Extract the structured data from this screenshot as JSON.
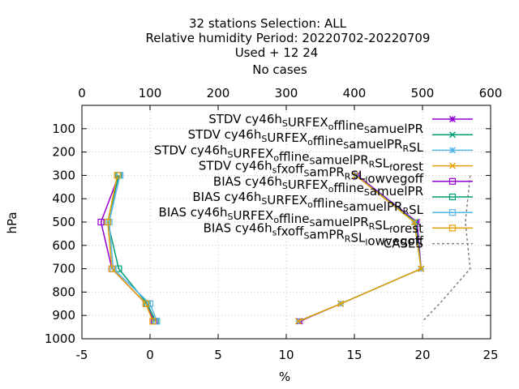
{
  "chart_data": {
    "type": "line",
    "title_lines": [
      "32 stations Selection: ALL",
      "Relative humidity  Period: 20220702-20220709",
      "Used   + 12 24",
      "No cases"
    ],
    "xlabel": "%",
    "ylabel": "hPa",
    "xlim": [
      -5,
      25
    ],
    "ylim": [
      1000,
      0
    ],
    "x2lim": [
      0,
      600
    ],
    "x_ticks": [
      "-5",
      "0",
      "5",
      "10",
      "15",
      "20",
      "25"
    ],
    "y_ticks": [
      "100",
      "200",
      "300",
      "400",
      "500",
      "600",
      "700",
      "800",
      "900",
      "1000"
    ],
    "x2_ticks": [
      "0",
      "100",
      "200",
      "300",
      "400",
      "500",
      "600"
    ],
    "grid": true,
    "legend_position": "top-right",
    "series": [
      {
        "name": "STDV cy46h_SURFEX_offline_samuelPR",
        "legend_parts": [
          [
            "STDV cy46h",
            "n"
          ],
          [
            "S",
            "sub"
          ],
          [
            "URFEX",
            "n"
          ],
          [
            "o",
            "sub"
          ],
          [
            "ffline",
            "n"
          ],
          [
            "S",
            "sub"
          ],
          [
            "amuelPR",
            "n"
          ]
        ],
        "color": "#9400d3",
        "marker": "star",
        "x": [
          15.2,
          19.6,
          19.9,
          14.0,
          11.0
        ],
        "y": [
          300,
          500,
          700,
          850,
          925
        ]
      },
      {
        "name": "STDV cy46h_SURFEX_offline_samuelPR_RSL",
        "legend_parts": [
          [
            "STDV cy46h",
            "n"
          ],
          [
            "S",
            "sub"
          ],
          [
            "URFEX",
            "n"
          ],
          [
            "o",
            "sub"
          ],
          [
            "ffline",
            "n"
          ],
          [
            "S",
            "sub"
          ],
          [
            "amuelPR",
            "n"
          ],
          [
            "R",
            "sub"
          ],
          [
            "SL",
            "n"
          ]
        ],
        "color": "#009e73",
        "marker": "x",
        "x": [
          15.1,
          19.5,
          19.9,
          14.0,
          10.9
        ],
        "y": [
          300,
          500,
          700,
          850,
          925
        ]
      },
      {
        "name": "STDV cy46h_SURFEX_offline_samuelPR_RSL_forest",
        "legend_parts": [
          [
            "STDV cy46h",
            "n"
          ],
          [
            "S",
            "sub"
          ],
          [
            "URFEX",
            "n"
          ],
          [
            "o",
            "sub"
          ],
          [
            "ffline",
            "n"
          ],
          [
            "S",
            "sub"
          ],
          [
            "amuelPR",
            "n"
          ],
          [
            "R",
            "sub"
          ],
          [
            "SL",
            "n"
          ],
          [
            "f",
            "sub"
          ],
          [
            "orest",
            "n"
          ]
        ],
        "color": "#56b4e9",
        "marker": "star",
        "x": [
          15.1,
          19.4,
          19.9,
          14.0,
          10.9
        ],
        "y": [
          300,
          500,
          700,
          850,
          925
        ]
      },
      {
        "name": "STDV cy46h_sfxoff_samPR_RSL_lowvegoff",
        "legend_parts": [
          [
            "STDV cy46h",
            "n"
          ],
          [
            "s",
            "sub"
          ],
          [
            "fxoff",
            "n"
          ],
          [
            "S",
            "sub"
          ],
          [
            "amPR",
            "n"
          ],
          [
            "R",
            "sub"
          ],
          [
            "SL",
            "n"
          ],
          [
            "l",
            "sub"
          ],
          [
            "owvegoff",
            "n"
          ]
        ],
        "color": "#e69f00",
        "marker": "x",
        "x": [
          15.1,
          19.4,
          19.9,
          14.0,
          10.9
        ],
        "y": [
          300,
          500,
          700,
          850,
          925
        ]
      },
      {
        "name": "BIAS cy46h_SURFEX_offline_samuelPR",
        "legend_parts": [
          [
            "BIAS cy46h",
            "n"
          ],
          [
            "S",
            "sub"
          ],
          [
            "URFEX",
            "n"
          ],
          [
            "o",
            "sub"
          ],
          [
            "ffline",
            "n"
          ],
          [
            "S",
            "sub"
          ],
          [
            "amuelPR",
            "n"
          ]
        ],
        "color": "#9400d3",
        "marker": "square",
        "x": [
          -2.3,
          -3.6,
          -2.8,
          -0.3,
          0.3
        ],
        "y": [
          300,
          500,
          700,
          850,
          925
        ]
      },
      {
        "name": "BIAS cy46h_SURFEX_offline_samuelPR_RSL",
        "legend_parts": [
          [
            "BIAS cy46h",
            "n"
          ],
          [
            "S",
            "sub"
          ],
          [
            "URFEX",
            "n"
          ],
          [
            "o",
            "sub"
          ],
          [
            "ffline",
            "n"
          ],
          [
            "S",
            "sub"
          ],
          [
            "amuelPR",
            "n"
          ],
          [
            "R",
            "sub"
          ],
          [
            "SL",
            "n"
          ]
        ],
        "color": "#009e73",
        "marker": "square",
        "x": [
          -2.3,
          -3.1,
          -2.3,
          -0.2,
          0.4
        ],
        "y": [
          300,
          500,
          700,
          850,
          925
        ]
      },
      {
        "name": "BIAS cy46h_SURFEX_offline_samuelPR_RSL_forest",
        "legend_parts": [
          [
            "BIAS cy46h",
            "n"
          ],
          [
            "S",
            "sub"
          ],
          [
            "URFEX",
            "n"
          ],
          [
            "o",
            "sub"
          ],
          [
            "ffline",
            "n"
          ],
          [
            "S",
            "sub"
          ],
          [
            "amuelPR",
            "n"
          ],
          [
            "R",
            "sub"
          ],
          [
            "SL",
            "n"
          ],
          [
            "f",
            "sub"
          ],
          [
            "orest",
            "n"
          ]
        ],
        "color": "#56b4e9",
        "marker": "square",
        "x": [
          -2.2,
          -3.0,
          -2.7,
          0.0,
          0.5
        ],
        "y": [
          300,
          500,
          700,
          850,
          925
        ]
      },
      {
        "name": "BIAS cy46h_sfxoff_samPR_RSL_lowvegoff",
        "legend_parts": [
          [
            "BIAS cy46h",
            "n"
          ],
          [
            "s",
            "sub"
          ],
          [
            "fxoff",
            "n"
          ],
          [
            "S",
            "sub"
          ],
          [
            "amPR",
            "n"
          ],
          [
            "R",
            "sub"
          ],
          [
            "SL",
            "n"
          ],
          [
            "l",
            "sub"
          ],
          [
            "owvegoff",
            "n"
          ]
        ],
        "color": "#e69f00",
        "marker": "square",
        "x": [
          -2.4,
          -3.1,
          -2.8,
          -0.3,
          0.2
        ],
        "y": [
          300,
          500,
          700,
          850,
          925
        ]
      },
      {
        "name": "CASES",
        "legend_parts": [
          [
            "CASES",
            "n"
          ]
        ],
        "color": "#808080",
        "marker": "none",
        "dashed": true,
        "axis": "x2",
        "x": [
          570,
          563,
          570,
          525,
          500
        ],
        "y": [
          300,
          500,
          700,
          850,
          925
        ]
      }
    ]
  }
}
